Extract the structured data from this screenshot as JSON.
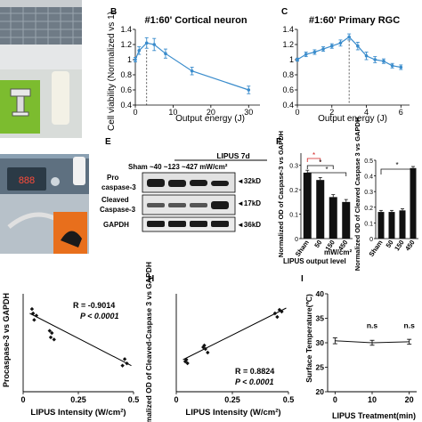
{
  "panels": {
    "B": {
      "letter": "B",
      "title": "#1:60'  Cortical neuron"
    },
    "C": {
      "letter": "C",
      "title": "#1:60'  Primary RGC"
    },
    "E": {
      "letter": "E"
    },
    "F": {
      "letter": "F"
    },
    "H": {
      "letter": "H"
    },
    "I": {
      "letter": "I"
    }
  },
  "blot": {
    "header_lipus": "LIPUS 7d",
    "header_row": "Sham ~40 ~123 ~427 mW/cm²",
    "row1_label_a": "Pro",
    "row1_label_b": "caspase-3",
    "row1_size": "◄32kD",
    "row2_label_a": "Cleaved",
    "row2_label_b": "Caspase-3",
    "row2_size": "◄17kD",
    "row3_label": "GAPDH",
    "row3_size": "◄36kD"
  },
  "photo": {
    "device_screen_text": "888"
  },
  "chart_data": [
    {
      "id": "B",
      "type": "line",
      "title": "#1:60'  Cortical neuron",
      "xlabel": "Output energy (J)",
      "ylabel": "Cell viability (Normalized vs 1)",
      "xlim": [
        0,
        33
      ],
      "ylim": [
        0.4,
        1.4
      ],
      "xticks": [
        0,
        10,
        20,
        30
      ],
      "yticks": [
        0.4,
        0.6,
        0.8,
        1.0,
        1.2,
        1.4
      ],
      "ytick_labels": [
        "0.4",
        "0.6",
        "0.8",
        "1",
        "1.2",
        "1.4"
      ],
      "x": [
        0,
        1,
        3,
        5,
        8,
        15,
        30
      ],
      "y": [
        1.0,
        1.12,
        1.22,
        1.2,
        1.08,
        0.85,
        0.6
      ],
      "err": [
        0.03,
        0.05,
        0.07,
        0.08,
        0.06,
        0.05,
        0.05
      ],
      "marker_x": 3,
      "color": "#3a8ccc"
    },
    {
      "id": "C",
      "type": "line",
      "title": "#1:60'  Primary RGC",
      "xlabel": "Output energy (J)",
      "ylabel": "",
      "xlim": [
        0,
        6.5
      ],
      "ylim": [
        0.4,
        1.4
      ],
      "xticks": [
        0,
        2,
        4,
        6
      ],
      "yticks": [
        0.4,
        0.6,
        0.8,
        1.0,
        1.2,
        1.4
      ],
      "ytick_labels": [
        "0.4",
        "0.6",
        "0.8",
        "1",
        "1.2",
        "1.4"
      ],
      "x": [
        0,
        0.5,
        1,
        1.5,
        2,
        2.5,
        3,
        3.5,
        4,
        4.5,
        5,
        5.5,
        6
      ],
      "y": [
        1.0,
        1.07,
        1.1,
        1.14,
        1.18,
        1.22,
        1.3,
        1.18,
        1.05,
        1.0,
        0.98,
        0.92,
        0.9
      ],
      "err": [
        0.02,
        0.03,
        0.03,
        0.03,
        0.03,
        0.04,
        0.04,
        0.05,
        0.05,
        0.04,
        0.03,
        0.03,
        0.03
      ],
      "marker_x": 3,
      "color": "#3a8ccc"
    },
    {
      "id": "F1",
      "type": "bar",
      "ylabel": "Normalized OD of Caspase-3 vs GAPDH",
      "categories": [
        "Sham",
        "50",
        "150",
        "450"
      ],
      "values": [
        0.27,
        0.24,
        0.17,
        0.15
      ],
      "err": [
        0.01,
        0.01,
        0.01,
        0.01
      ],
      "ylim": [
        0,
        0.35
      ],
      "yticks": [
        0,
        0.1,
        0.2,
        0.3
      ],
      "ytick_labels": [
        "0",
        "0.1",
        "0.2",
        "0.3"
      ],
      "unit_label": "mW/cm²",
      "xlabel": "LIPUS  output level",
      "sig": "*"
    },
    {
      "id": "F2",
      "type": "bar",
      "ylabel": "Normalized OD of Cleaved Caspase 3 vs GAPDH",
      "categories": [
        "Sham",
        "50",
        "150",
        "450"
      ],
      "values": [
        0.17,
        0.17,
        0.18,
        0.45
      ],
      "err": [
        0.01,
        0.01,
        0.01,
        0.01
      ],
      "ylim": [
        0,
        0.5
      ],
      "yticks": [
        0,
        0.1,
        0.2,
        0.3,
        0.4,
        0.5
      ],
      "ytick_labels": [
        "0",
        "0.1",
        "0.2",
        "0.3",
        "0.4",
        "0.5"
      ],
      "sig": "*"
    },
    {
      "id": "G",
      "type": "scatter",
      "ylabel": "Procaspase-3 vs GAPDH",
      "xlabel": "LIPUS  Intensity (W/cm²)",
      "xlim": [
        0,
        0.5
      ],
      "ylim": [
        0,
        0.45
      ],
      "xticks": [
        0,
        0.25,
        0.5
      ],
      "xtick_labels": [
        "0",
        "0.25",
        "0.5"
      ],
      "annotation_r": "R = -0.9014",
      "annotation_p": "P < 0.0001",
      "x": [
        0.04,
        0.045,
        0.05,
        0.06,
        0.12,
        0.125,
        0.13,
        0.14,
        0.45,
        0.46,
        0.47
      ],
      "y": [
        0.38,
        0.36,
        0.33,
        0.35,
        0.28,
        0.25,
        0.27,
        0.24,
        0.12,
        0.15,
        0.13
      ],
      "fit": [
        [
          0.03,
          0.36
        ],
        [
          0.49,
          0.12
        ]
      ]
    },
    {
      "id": "H",
      "type": "scatter",
      "ylabel": "Normalized OD of Cleaved-Caspase 3 vs GAPDH",
      "xlabel": "LIPUS  Intensity (W/cm²)",
      "xlim": [
        0,
        0.5
      ],
      "ylim": [
        0,
        0.55
      ],
      "xticks": [
        0,
        0.25,
        0.5
      ],
      "xtick_labels": [
        "0",
        "0.25",
        "0.5"
      ],
      "annotation_r": "R = 0.8824",
      "annotation_p": "P < 0.0001",
      "x": [
        0.04,
        0.045,
        0.05,
        0.12,
        0.125,
        0.13,
        0.14,
        0.44,
        0.45,
        0.46,
        0.47
      ],
      "y": [
        0.17,
        0.18,
        0.16,
        0.25,
        0.26,
        0.24,
        0.22,
        0.44,
        0.42,
        0.46,
        0.45
      ],
      "fit": [
        [
          0.03,
          0.18
        ],
        [
          0.49,
          0.47
        ]
      ]
    },
    {
      "id": "I",
      "type": "line",
      "ylabel": "Surface Temperature(℃)",
      "xlabel": "LIPUS Treatment(min)",
      "xlim": [
        -2,
        22
      ],
      "ylim": [
        20,
        40
      ],
      "xticks": [
        0,
        10,
        20
      ],
      "yticks": [
        20,
        25,
        30,
        35,
        40
      ],
      "x": [
        0,
        10,
        20
      ],
      "y": [
        30.4,
        30.0,
        30.2
      ],
      "err": [
        0.6,
        0.5,
        0.5
      ],
      "annotations": [
        "n.s",
        "n.s"
      ]
    }
  ]
}
